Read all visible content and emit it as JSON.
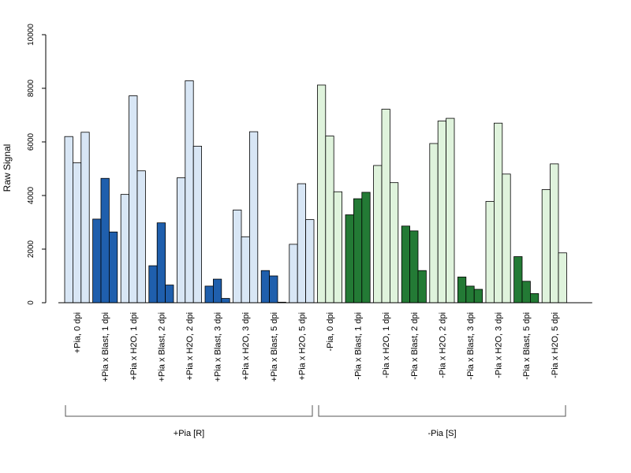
{
  "chart_data": {
    "type": "bar",
    "ylabel": "Raw Signal",
    "ylim": [
      0,
      10000
    ],
    "yticks": [
      0,
      2000,
      4000,
      6000,
      8000,
      10000
    ],
    "colors": {
      "light_blue": "#d8e6f5",
      "dark_blue": "#1f5fad",
      "light_green": "#dff3dc",
      "dark_green": "#237a35",
      "edge": "#000000"
    },
    "categories": [
      {
        "label": "+Pia, 0 dpi",
        "shade": "light_blue",
        "values": [
          6200,
          5220,
          6360
        ]
      },
      {
        "label": "+Pia x Blast, 1 dpi",
        "shade": "dark_blue",
        "values": [
          3120,
          4640,
          2640
        ]
      },
      {
        "label": "+Pia x H2O, 1 dpi",
        "shade": "light_blue",
        "values": [
          4040,
          7720,
          4920
        ]
      },
      {
        "label": "+Pia x Blast, 2 dpi",
        "shade": "dark_blue",
        "values": [
          1380,
          2980,
          660
        ]
      },
      {
        "label": "+Pia x H2O, 2 dpi",
        "shade": "light_blue",
        "values": [
          4660,
          8280,
          5840
        ]
      },
      {
        "label": "+Pia x Blast, 3 dpi",
        "shade": "dark_blue",
        "values": [
          620,
          880,
          160
        ]
      },
      {
        "label": "+Pia x H2O, 3 dpi",
        "shade": "light_blue",
        "values": [
          3460,
          2460,
          6380
        ]
      },
      {
        "label": "+Pia x Blast, 5 dpi",
        "shade": "dark_blue",
        "values": [
          1200,
          1000,
          20
        ]
      },
      {
        "label": "+Pia x H2O, 5 dpi",
        "shade": "light_blue",
        "values": [
          2180,
          4440,
          3100
        ]
      },
      {
        "label": "-Pia, 0 dpi",
        "shade": "light_green",
        "values": [
          8120,
          6220,
          4140
        ]
      },
      {
        "label": "-Pia x Blast, 1 dpi",
        "shade": "dark_green",
        "values": [
          3280,
          3880,
          4120
        ]
      },
      {
        "label": "-Pia x H2O, 1 dpi",
        "shade": "light_green",
        "values": [
          5120,
          7220,
          4480
        ]
      },
      {
        "label": "-Pia x Blast, 2 dpi",
        "shade": "dark_green",
        "values": [
          2860,
          2680,
          1200
        ]
      },
      {
        "label": "-Pia x H2O, 2 dpi",
        "shade": "light_green",
        "values": [
          5940,
          6780,
          6880
        ]
      },
      {
        "label": "-Pia x Blast, 3 dpi",
        "shade": "dark_green",
        "values": [
          960,
          620,
          500
        ]
      },
      {
        "label": "-Pia x H2O, 3 dpi",
        "shade": "light_green",
        "values": [
          3780,
          6700,
          4800
        ]
      },
      {
        "label": "-Pia x Blast, 5 dpi",
        "shade": "dark_green",
        "values": [
          1720,
          800,
          340
        ]
      },
      {
        "label": "-Pia x H2O, 5 dpi",
        "shade": "light_green",
        "values": [
          4220,
          5180,
          1860
        ]
      }
    ],
    "groups": [
      {
        "label": "+Pia [R]",
        "from": 0,
        "to": 8
      },
      {
        "label": "-Pia [S]",
        "from": 9,
        "to": 17
      }
    ],
    "grid": false,
    "legend": "none"
  }
}
